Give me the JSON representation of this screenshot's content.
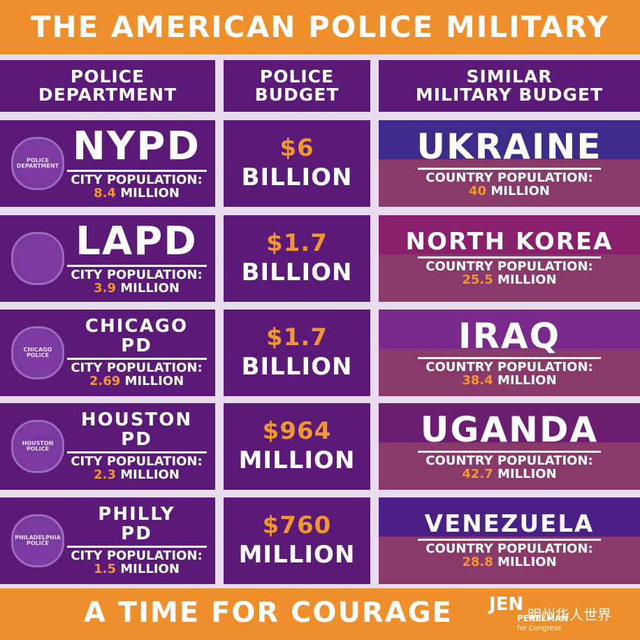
{
  "header": {
    "title": "THE AMERICAN POLICE MILITARY"
  },
  "columns": [
    [
      "POLICE",
      "DEPARTMENT"
    ],
    [
      "POLICE",
      "BUDGET"
    ],
    [
      "SIMILAR",
      "MILITARY BUDGET"
    ]
  ],
  "rows": [
    {
      "department": [
        "NYPD"
      ],
      "badge": [
        "POLICE",
        "DEPARTMENT"
      ],
      "city_label": "CITY POPULATION:",
      "city_population": "8.4",
      "city_unit": "MILLION",
      "budget": "$6",
      "budget_unit": "BILLION",
      "country": "UKRAINE",
      "country_label": "COUNTRY POPULATION:",
      "country_population": "40",
      "country_unit": "MILLION"
    },
    {
      "department": [
        "LAPD"
      ],
      "city_label": "CITY POPULATION:",
      "city_population": "3.9",
      "city_unit": "MILLION",
      "budget": "$1.7",
      "budget_unit": "BILLION",
      "country": "NORTH KOREA",
      "country_label": "COUNTRY POPULATION:",
      "country_population": "25.5",
      "country_unit": "MILLION"
    },
    {
      "department": [
        "CHICAGO",
        "PD"
      ],
      "badge": [
        "CHICAGO",
        "POLICE"
      ],
      "city_label": "CITY POPULATION:",
      "city_population": "2.69",
      "city_unit": "MILLION",
      "budget": "$1.7",
      "budget_unit": "BILLION",
      "country": "IRAQ",
      "country_label": "COUNTRY POPULATION:",
      "country_population": "38.4",
      "country_unit": "MILLION"
    },
    {
      "department": [
        "HOUSTON",
        "PD"
      ],
      "badge": [
        "HOUSTON",
        "POLICE"
      ],
      "city_label": "CITY POPULATION:",
      "city_population": "2.3",
      "city_unit": "MILLION",
      "budget": "$964",
      "budget_unit": "MILLION",
      "country": "UGANDA",
      "country_label": "COUNTRY POPULATION:",
      "country_population": "42.7",
      "country_unit": "MILLION"
    },
    {
      "department": [
        "PHILLY",
        "PD"
      ],
      "badge": [
        "PHILADELPHIA",
        "POLICE"
      ],
      "city_label": "CITY POPULATION:",
      "city_population": "1.5",
      "city_unit": "MILLION",
      "budget": "$760",
      "budget_unit": "MILLION",
      "country": "VENEZUELA",
      "country_label": "COUNTRY POPULATION:",
      "country_population": "28.8",
      "country_unit": "MILLION"
    }
  ],
  "footer": {
    "slogan": "A TIME FOR COURAGE",
    "logo": [
      "JEN",
      "PERELMAN",
      "for Congress"
    ],
    "watermark": "明州华人世界"
  }
}
